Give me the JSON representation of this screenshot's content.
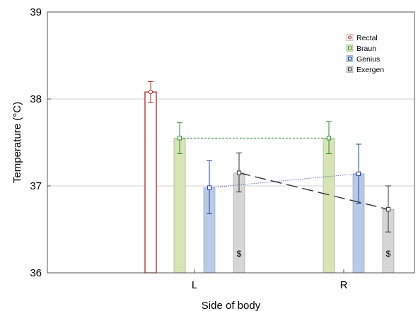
{
  "chart_data": {
    "type": "bar",
    "title": "",
    "xlabel": "Side of body",
    "ylabel": "Temperature (°C)",
    "ylim": [
      36,
      39
    ],
    "yticks": [
      "36",
      "37",
      "38",
      "39"
    ],
    "grid": true,
    "legend_position": "top-right",
    "categories": [
      "L",
      "R"
    ],
    "series": [
      {
        "name": "Rectal",
        "color": "#b22222",
        "fill": "#ffffff",
        "marker": "circle",
        "values": [
          38.08,
          null
        ],
        "err_low": [
          37.96,
          null
        ],
        "err_high": [
          38.2,
          null
        ]
      },
      {
        "name": "Braun",
        "color": "#2e8b2e",
        "fill": "#d6e5b3",
        "marker": "square",
        "values": [
          37.55,
          37.55
        ],
        "err_low": [
          37.37,
          37.37
        ],
        "err_high": [
          37.73,
          37.74
        ]
      },
      {
        "name": "Genius",
        "color": "#1f3faa",
        "fill": "#b7cae6",
        "marker": "square",
        "values": [
          36.98,
          37.14
        ],
        "err_low": [
          36.68,
          36.8
        ],
        "err_high": [
          37.29,
          37.48
        ]
      },
      {
        "name": "Exergen",
        "color": "#333333",
        "fill": "#d6d6d6",
        "marker": "square",
        "values": [
          37.15,
          36.73
        ],
        "err_low": [
          36.93,
          36.47
        ],
        "err_high": [
          37.38,
          37.0
        ]
      }
    ],
    "annotations": [
      {
        "category": "L",
        "series": "Exergen",
        "text": "$"
      },
      {
        "category": "R",
        "series": "Exergen",
        "text": "$"
      }
    ]
  }
}
